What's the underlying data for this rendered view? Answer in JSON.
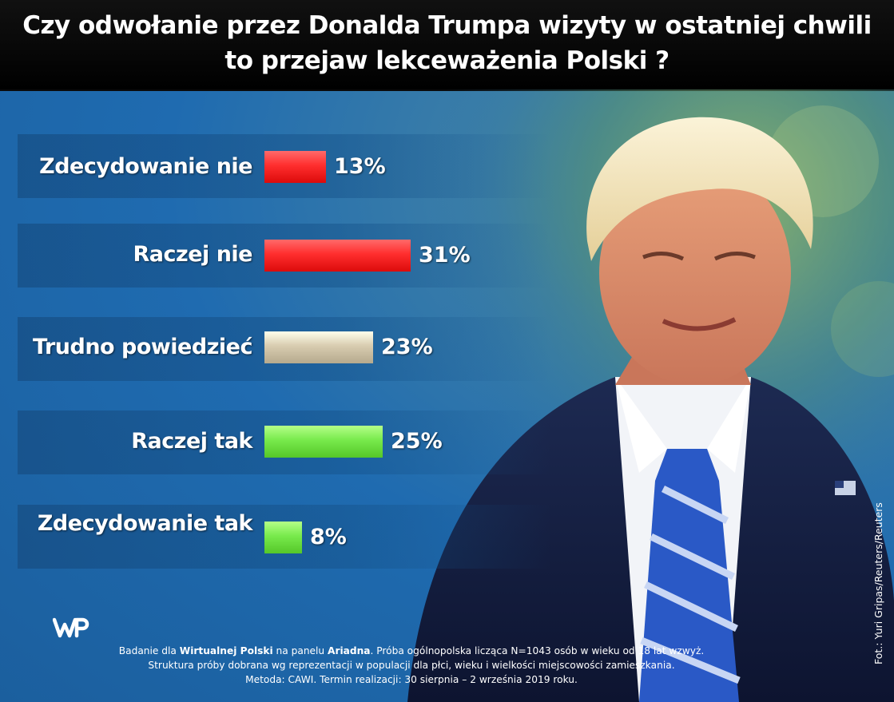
{
  "title": {
    "line1": "Czy odwołanie przez Donalda Trumpa wizyty w ostatniej chwili",
    "line2": "to przejaw lekceważenia Polski ?"
  },
  "chart_data": {
    "type": "bar",
    "orientation": "horizontal",
    "categories": [
      "Zdecydowanie nie",
      "Raczej nie",
      "Trudno powiedzieć",
      "Raczej tak",
      "Zdecydowanie tak"
    ],
    "values": [
      13,
      31,
      23,
      25,
      8
    ],
    "value_labels": [
      "13%",
      "31%",
      "23%",
      "25%",
      "8%"
    ],
    "unit": "%",
    "colors": [
      "#ff2e2e",
      "#ff2e2e",
      "#d8ccb0",
      "#78ea4c",
      "#78ea4c"
    ]
  },
  "footer": {
    "l1_a": "Badanie dla ",
    "l1_b": "Wirtualnej Polski",
    "l1_c": " na panelu ",
    "l1_d": "Ariadna",
    "l1_e": ". Próba ogólnopolska licząca N=1043 osób w wieku od 18 lat wzwyż.",
    "line2": "Struktura próby dobrana wg reprezentacji w populacji dla płci, wieku i wielkości miejscowości zamieszkania.",
    "line3": "Metoda: CAWI. Termin realizacji: 30 sierpnia – 2 września 2019 roku."
  },
  "logo_icon": "wp-logo-icon",
  "photo_credit": "Fot.: Yuri Gripas/Reuters/Reuters"
}
